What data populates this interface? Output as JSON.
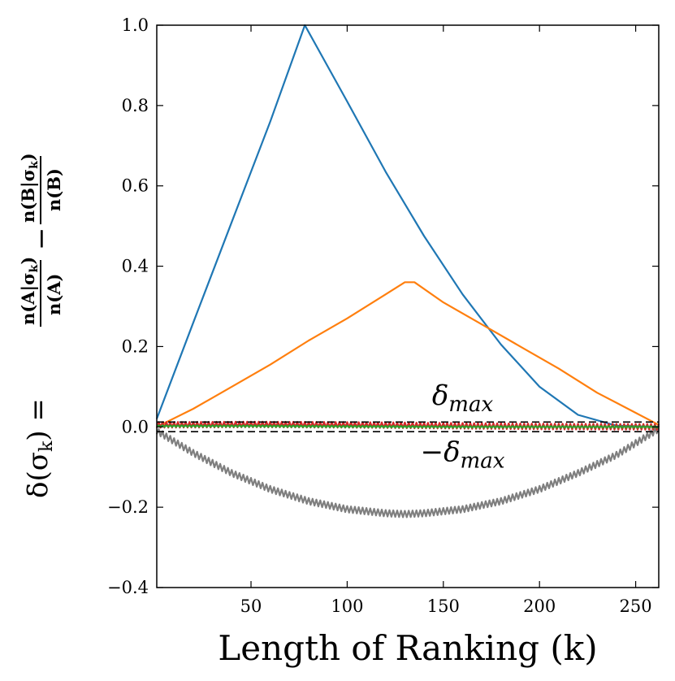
{
  "chart_data": {
    "type": "line",
    "title": "",
    "xlabel": "Length of Ranking (k)",
    "ylabel": "δ(σ_k) = n(A|σ_k)/n(A) − n(B|σ_k)/n(B)",
    "ylabel_parts": {
      "lhs": "δ(σ",
      "lhs_sub": "k",
      "lhs_close": ") =",
      "frac1_num": "n(A|σ",
      "frac1_num_sub": "k",
      "frac1_num_close": ")",
      "frac1_den": "n(A)",
      "minus": "−",
      "frac2_num": "n(B|σ",
      "frac2_num_sub": "k",
      "frac2_num_close": ")",
      "frac2_den": "n(B)"
    },
    "xlim": [
      1,
      262
    ],
    "ylim": [
      -0.4,
      1.0
    ],
    "x_ticks": [
      50,
      100,
      150,
      200,
      250
    ],
    "x_tick_labels": [
      "50",
      "100",
      "150",
      "200",
      "250"
    ],
    "y_ticks": [
      -0.4,
      -0.2,
      0.0,
      0.2,
      0.4,
      0.6,
      0.8,
      1.0
    ],
    "y_tick_labels": [
      "−0.4",
      "−0.2",
      "0.0",
      "0.2",
      "0.4",
      "0.6",
      "0.8",
      "1.0"
    ],
    "grid": false,
    "reference_lines": [
      {
        "name": "delta-max",
        "y": 0.012,
        "style": "dashed",
        "color": "#000000"
      },
      {
        "name": "neg-delta-max",
        "y": -0.012,
        "style": "dashed",
        "color": "#000000"
      }
    ],
    "annotations": [
      {
        "name": "delta-max-label",
        "base": "δ",
        "sub": "max",
        "x": 160,
        "y": 0.055
      },
      {
        "name": "neg-delta-max-label",
        "base": "−δ",
        "sub": "max",
        "x": 160,
        "y": -0.085
      }
    ],
    "series": [
      {
        "name": "blue",
        "color": "#1f77b4",
        "x": [
          1,
          20,
          40,
          60,
          78,
          100,
          120,
          140,
          160,
          180,
          200,
          220,
          240,
          262
        ],
        "y": [
          0.02,
          0.26,
          0.51,
          0.76,
          1.0,
          0.81,
          0.635,
          0.475,
          0.33,
          0.205,
          0.1,
          0.03,
          0.003,
          0.0
        ]
      },
      {
        "name": "orange",
        "color": "#ff7f0e",
        "x": [
          1,
          20,
          40,
          60,
          80,
          100,
          120,
          130,
          135,
          150,
          170,
          190,
          210,
          230,
          250,
          262
        ],
        "y": [
          0.0,
          0.045,
          0.1,
          0.155,
          0.215,
          0.27,
          0.33,
          0.36,
          0.36,
          0.31,
          0.255,
          0.2,
          0.145,
          0.085,
          0.035,
          0.005
        ]
      },
      {
        "name": "gray",
        "color": "#7f7f7f",
        "zigzag_amplitude": 0.008,
        "x": [
          1,
          20,
          40,
          60,
          80,
          100,
          120,
          130,
          140,
          160,
          180,
          200,
          220,
          240,
          262
        ],
        "y": [
          -0.01,
          -0.065,
          -0.115,
          -0.155,
          -0.185,
          -0.205,
          -0.215,
          -0.217,
          -0.215,
          -0.205,
          -0.185,
          -0.155,
          -0.115,
          -0.07,
          -0.005
        ]
      },
      {
        "name": "red",
        "color": "#d62728",
        "zigzag_amplitude": 0.007,
        "x": [
          1,
          50,
          100,
          150,
          200,
          262
        ],
        "y": [
          0.005,
          0.006,
          0.005,
          0.003,
          0.001,
          0.0
        ]
      },
      {
        "name": "green",
        "color": "#2ca02c",
        "zigzag_amplitude": 0.002,
        "x": [
          1,
          50,
          100,
          150,
          200,
          262
        ],
        "y": [
          0.002,
          0.002,
          0.001,
          0.0,
          0.0,
          0.0
        ]
      }
    ]
  }
}
